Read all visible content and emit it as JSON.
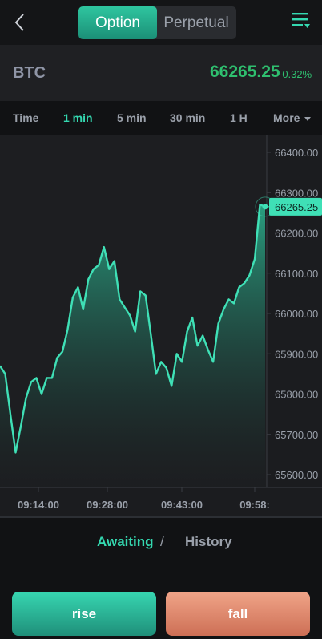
{
  "header": {
    "back_icon": "chevron-left-icon",
    "tabs": [
      {
        "label": "Option",
        "active": true
      },
      {
        "label": "Perpetual",
        "active": false
      }
    ],
    "menu_icon": "filter-list-icon",
    "accent_color": "#2fc6a0"
  },
  "ticker": {
    "symbol": "BTC",
    "price": "66265.25",
    "change": "-0.32%",
    "price_color": "#2fbf6f"
  },
  "timeframes": {
    "label": "Time",
    "options": [
      "1 min",
      "5 min",
      "30 min",
      "1 H"
    ],
    "selected": "1 min",
    "more_label": "More"
  },
  "records": {
    "awaiting_label": "Awaiting",
    "separator": "/",
    "history_label": "History",
    "selected": "Awaiting"
  },
  "actions": {
    "rise_label": "rise",
    "fall_label": "fall"
  },
  "chart_data": {
    "type": "area",
    "ylim": [
      65550,
      66450
    ],
    "y_ticks": [
      "66400.00",
      "66300.00",
      "66200.00",
      "66100.00",
      "66000.00",
      "65900.00",
      "65800.00",
      "65700.00",
      "65600.00"
    ],
    "x_ticks": [
      "09:14:00",
      "09:28:00",
      "09:43:00",
      "09:58:"
    ],
    "current_price_label": "66265.25",
    "line_color": "#3fe0b6",
    "series": [
      {
        "values": [
          65870,
          65850,
          65750,
          65655,
          65720,
          65790,
          65830,
          65840,
          65800,
          65840,
          65840,
          65890,
          65905,
          65960,
          66040,
          66065,
          66010,
          66085,
          66110,
          66120,
          66165,
          66110,
          66130,
          66035,
          66015,
          65995,
          65955,
          66055,
          66045,
          65950,
          65850,
          65880,
          65865,
          65820,
          65900,
          65880,
          65955,
          65990,
          65920,
          65945,
          65910,
          65880,
          65975,
          66010,
          66035,
          66025,
          66065,
          66075,
          66095,
          66135,
          66270,
          66265
        ]
      }
    ]
  }
}
